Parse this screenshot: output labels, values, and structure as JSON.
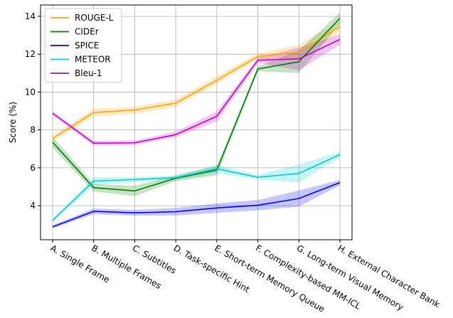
{
  "chart_data": {
    "type": "line",
    "title": "",
    "xlabel": "",
    "ylabel": "Score (%)",
    "ylim": [
      2.2,
      14.6
    ],
    "yticks": [
      4,
      6,
      8,
      10,
      12,
      14
    ],
    "grid": true,
    "legend_position": "top-left",
    "categories": [
      "A. Single Frame",
      "B. Multiple Frames",
      "C. Subtitles",
      "D. Task-specific Hint",
      "E. Short-term Memory Queue",
      "F. Complexity-based MM-ICL",
      "G. Long-term Visual Memory",
      "H. External Character Bank"
    ],
    "series": [
      {
        "name": "ROUGE-L",
        "color": "#FFA500",
        "values": [
          7.55,
          8.92,
          9.05,
          9.42,
          10.62,
          11.88,
          12.1,
          13.45
        ],
        "lower": [
          7.4,
          8.7,
          8.85,
          9.2,
          10.42,
          11.72,
          11.75,
          13.15
        ],
        "upper": [
          7.7,
          9.12,
          9.22,
          9.62,
          10.85,
          12.05,
          12.5,
          13.75
        ]
      },
      {
        "name": "CIDEr",
        "color": "#008000",
        "values": [
          7.35,
          4.95,
          4.78,
          5.45,
          5.88,
          11.22,
          11.6,
          13.9
        ],
        "lower": [
          7.05,
          4.75,
          4.5,
          5.3,
          5.6,
          11.1,
          11.0,
          13.6
        ],
        "upper": [
          7.65,
          5.15,
          5.05,
          5.6,
          6.1,
          11.35,
          12.2,
          14.2
        ]
      },
      {
        "name": "SPICE",
        "color": "#0000FF",
        "values": [
          2.88,
          3.7,
          3.62,
          3.68,
          3.88,
          4.02,
          4.38,
          5.22
        ],
        "lower": [
          2.8,
          3.55,
          3.47,
          3.48,
          3.62,
          3.75,
          3.95,
          5.08
        ],
        "upper": [
          2.96,
          3.85,
          3.78,
          3.88,
          4.12,
          4.3,
          4.8,
          5.36
        ]
      },
      {
        "name": "METEOR",
        "color": "#00CED1",
        "values": [
          3.22,
          5.3,
          5.38,
          5.48,
          5.95,
          5.5,
          5.7,
          6.7
        ],
        "lower": [
          3.14,
          5.08,
          5.25,
          5.35,
          5.72,
          5.38,
          5.22,
          6.56
        ],
        "upper": [
          3.3,
          5.5,
          5.5,
          5.6,
          6.15,
          5.62,
          6.18,
          6.84
        ]
      },
      {
        "name": "Bleu-1",
        "color": "#C800C8",
        "values": [
          8.88,
          7.3,
          7.32,
          7.75,
          8.72,
          11.68,
          11.75,
          12.78
        ],
        "lower": [
          8.78,
          7.18,
          7.2,
          7.62,
          8.45,
          11.55,
          11.15,
          12.5
        ],
        "upper": [
          8.98,
          7.42,
          7.45,
          7.9,
          8.98,
          11.82,
          12.35,
          13.05
        ]
      }
    ]
  }
}
